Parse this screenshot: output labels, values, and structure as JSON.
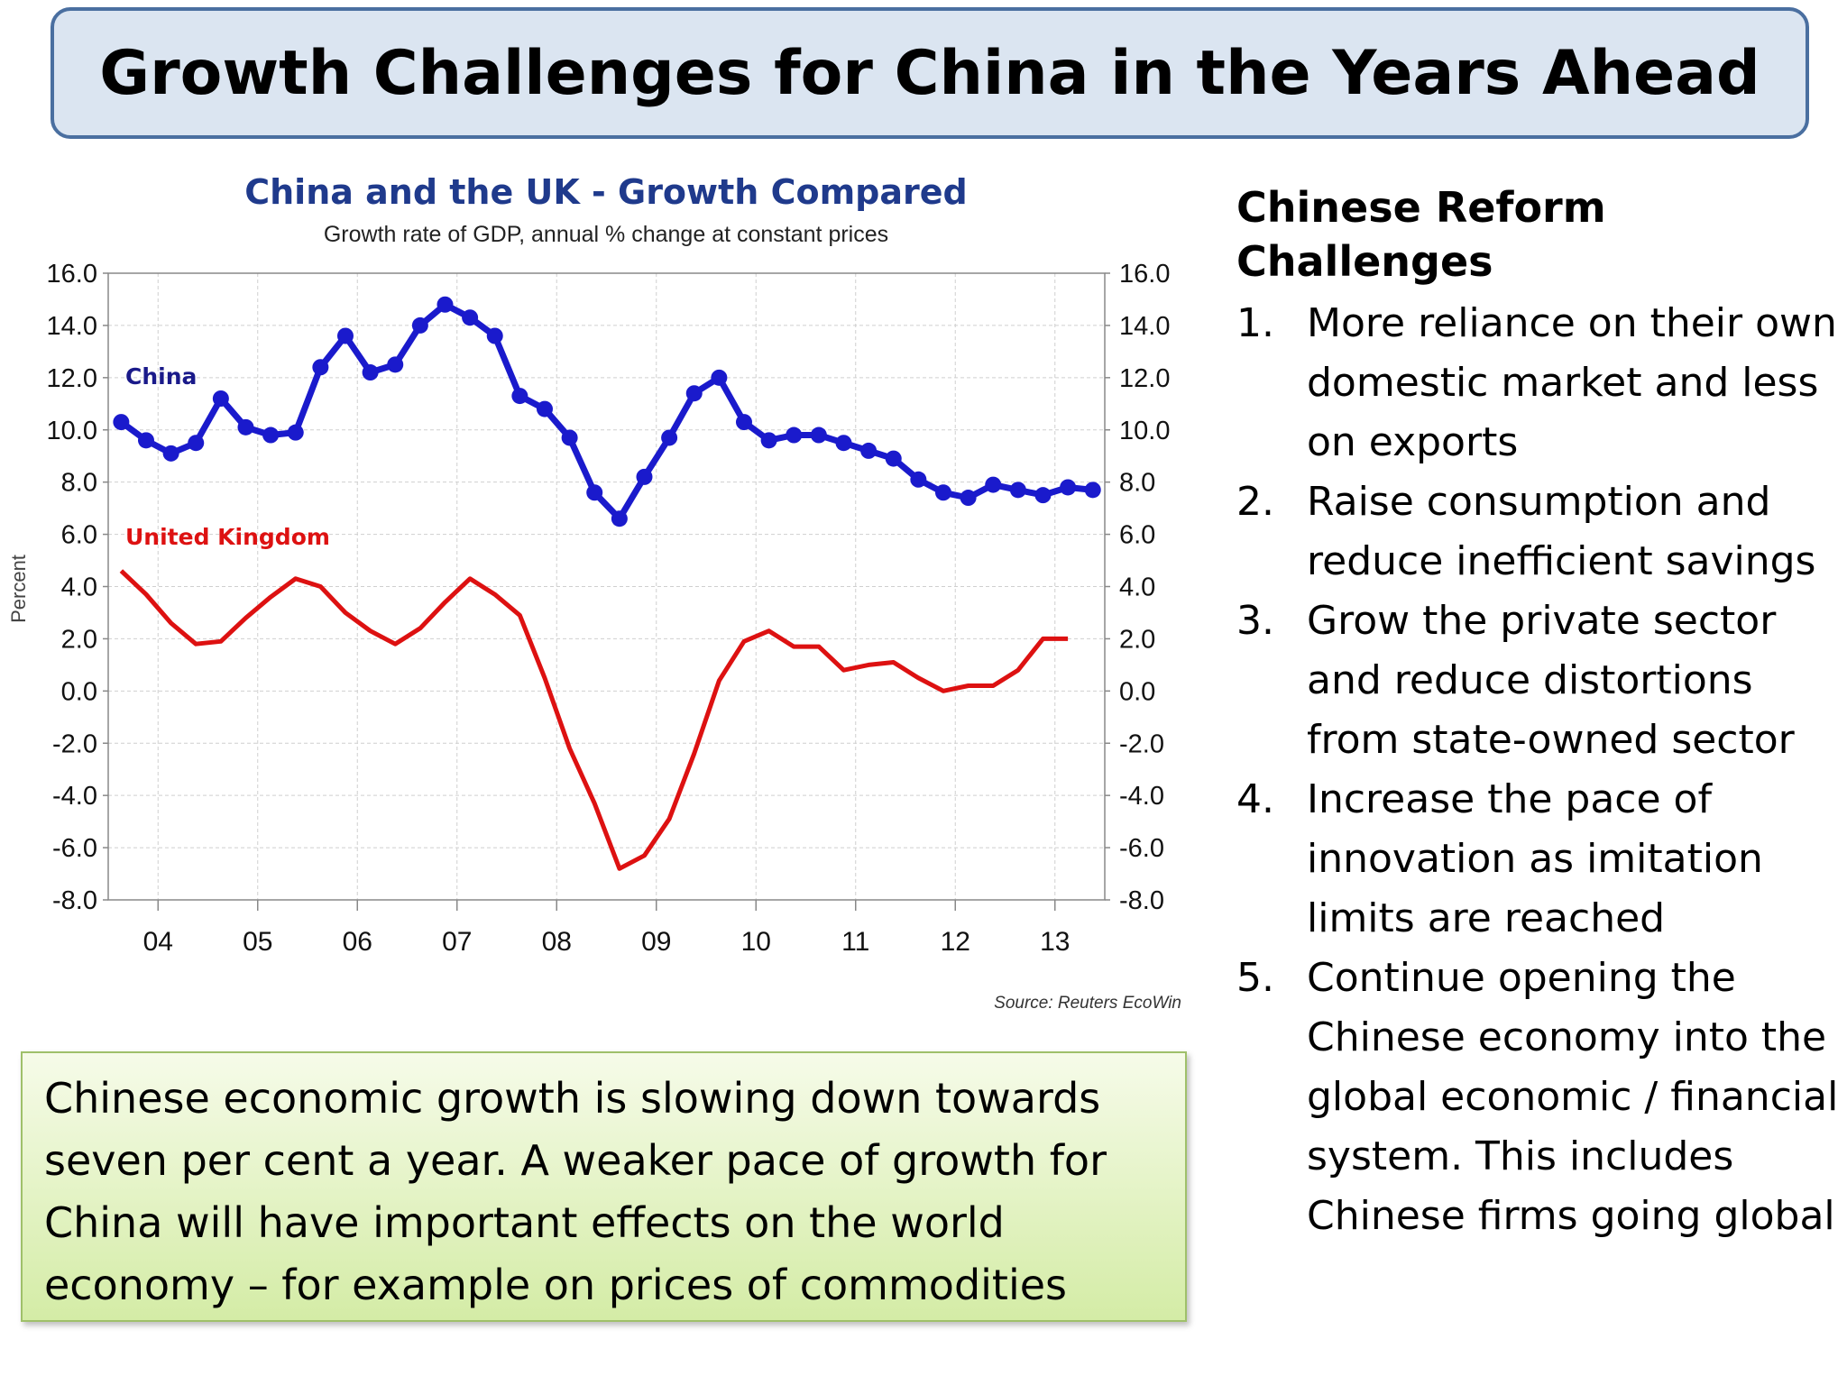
{
  "slide": {
    "title": "Growth Challenges for China in the Years Ahead",
    "summary": "Chinese economic growth is slowing down towards seven per cent a year. A weaker pace of growth for China will have important effects on the world economy – for example on prices of commodities",
    "reform": {
      "heading": "Chinese Reform Challenges",
      "items": [
        {
          "num": "1.",
          "text": "More reliance on their own domestic market and less on exports"
        },
        {
          "num": "2.",
          "text": "Raise consumption and reduce inefficient savings"
        },
        {
          "num": "3.",
          "text": "Grow the private sector and reduce distortions from state-owned sector"
        },
        {
          "num": "4.",
          "text": "Increase the pace of innovation as imitation limits are reached"
        },
        {
          "num": "5.",
          "text": "Continue opening the Chinese economy into the global economic / financial system. This includes Chinese firms going global"
        }
      ]
    }
  },
  "chart_data": {
    "type": "line",
    "title": "China and the UK - Growth Compared",
    "subtitle": "Growth rate of GDP, annual % change at constant prices",
    "ylabel": "Percent",
    "source": "Source: Reuters EcoWin",
    "ylim": [
      -8,
      16
    ],
    "xlim": [
      2003.5,
      2013.5
    ],
    "yticks": [
      "16.0",
      "14.0",
      "12.0",
      "10.0",
      "8.0",
      "6.0",
      "4.0",
      "2.0",
      "0.0",
      "-2.0",
      "-4.0",
      "-6.0",
      "-8.0"
    ],
    "xtick_labels": [
      "04",
      "05",
      "06",
      "07",
      "08",
      "09",
      "10",
      "11",
      "12",
      "13"
    ],
    "grid": true,
    "colors": {
      "china": "#1a1acc",
      "uk": "#dd1111",
      "title": "#1f3a8c"
    },
    "series": [
      {
        "name": "China",
        "values": [
          [
            2003.63,
            10.3
          ],
          [
            2003.88,
            9.6
          ],
          [
            2004.13,
            9.1
          ],
          [
            2004.38,
            9.5
          ],
          [
            2004.63,
            11.2
          ],
          [
            2004.88,
            10.1
          ],
          [
            2005.13,
            9.8
          ],
          [
            2005.38,
            9.9
          ],
          [
            2005.63,
            12.4
          ],
          [
            2005.88,
            13.6
          ],
          [
            2006.13,
            12.2
          ],
          [
            2006.38,
            12.5
          ],
          [
            2006.63,
            14.0
          ],
          [
            2006.88,
            14.8
          ],
          [
            2007.13,
            14.3
          ],
          [
            2007.38,
            13.6
          ],
          [
            2007.63,
            11.3
          ],
          [
            2007.88,
            10.8
          ],
          [
            2008.13,
            9.7
          ],
          [
            2008.38,
            7.6
          ],
          [
            2008.63,
            6.6
          ],
          [
            2008.88,
            8.2
          ],
          [
            2009.13,
            9.7
          ],
          [
            2009.38,
            11.4
          ],
          [
            2009.63,
            12.0
          ],
          [
            2009.88,
            10.3
          ],
          [
            2010.13,
            9.6
          ],
          [
            2010.38,
            9.8
          ],
          [
            2010.63,
            9.8
          ],
          [
            2010.88,
            9.5
          ],
          [
            2011.13,
            9.2
          ],
          [
            2011.38,
            8.9
          ],
          [
            2011.63,
            8.1
          ],
          [
            2011.88,
            7.6
          ],
          [
            2012.13,
            7.4
          ],
          [
            2012.38,
            7.9
          ],
          [
            2012.63,
            7.7
          ],
          [
            2012.88,
            7.5
          ],
          [
            2013.13,
            7.8
          ],
          [
            2013.38,
            7.7
          ]
        ]
      },
      {
        "name": "United Kingdom",
        "values": [
          [
            2003.63,
            4.6
          ],
          [
            2003.88,
            3.7
          ],
          [
            2004.13,
            2.6
          ],
          [
            2004.38,
            1.8
          ],
          [
            2004.63,
            1.9
          ],
          [
            2004.88,
            2.8
          ],
          [
            2005.13,
            3.6
          ],
          [
            2005.38,
            4.3
          ],
          [
            2005.63,
            4.0
          ],
          [
            2005.88,
            3.0
          ],
          [
            2006.13,
            2.3
          ],
          [
            2006.38,
            1.8
          ],
          [
            2006.63,
            2.4
          ],
          [
            2006.88,
            3.4
          ],
          [
            2007.13,
            4.3
          ],
          [
            2007.38,
            3.7
          ],
          [
            2007.63,
            2.9
          ],
          [
            2007.88,
            0.5
          ],
          [
            2008.13,
            -2.2
          ],
          [
            2008.38,
            -4.3
          ],
          [
            2008.63,
            -6.8
          ],
          [
            2008.88,
            -6.3
          ],
          [
            2009.13,
            -4.9
          ],
          [
            2009.38,
            -2.4
          ],
          [
            2009.63,
            0.4
          ],
          [
            2009.88,
            1.9
          ],
          [
            2010.13,
            2.3
          ],
          [
            2010.38,
            1.7
          ],
          [
            2010.63,
            1.7
          ],
          [
            2010.88,
            0.8
          ],
          [
            2011.13,
            1.0
          ],
          [
            2011.38,
            1.1
          ],
          [
            2011.63,
            0.5
          ],
          [
            2011.88,
            0.0
          ],
          [
            2012.13,
            0.2
          ],
          [
            2012.38,
            0.2
          ],
          [
            2012.63,
            0.8
          ],
          [
            2012.88,
            2.0
          ],
          [
            2013.13,
            2.0
          ]
        ]
      }
    ]
  }
}
